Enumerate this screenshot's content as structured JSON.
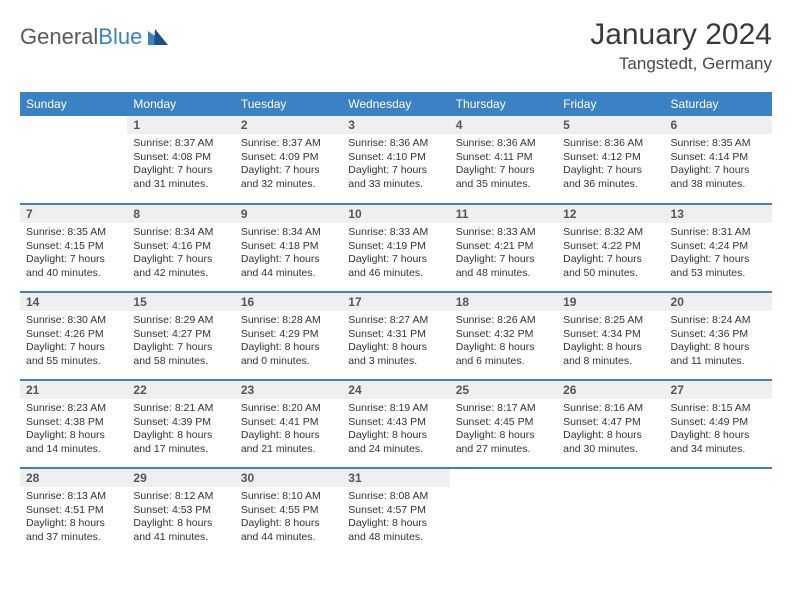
{
  "brand": {
    "name_a": "General",
    "name_b": "Blue"
  },
  "title": "January 2024",
  "location": "Tangstedt, Germany",
  "colors": {
    "header_bg": "#3b82c4",
    "header_text": "#ffffff",
    "daynum_bg": "#efefef",
    "row_border": "#3b82c4",
    "text": "#333333"
  },
  "days_of_week": [
    "Sunday",
    "Monday",
    "Tuesday",
    "Wednesday",
    "Thursday",
    "Friday",
    "Saturday"
  ],
  "grid": [
    [
      {
        "n": "",
        "sr": "",
        "ss": "",
        "dl": ""
      },
      {
        "n": "1",
        "sr": "Sunrise: 8:37 AM",
        "ss": "Sunset: 4:08 PM",
        "dl": "Daylight: 7 hours and 31 minutes."
      },
      {
        "n": "2",
        "sr": "Sunrise: 8:37 AM",
        "ss": "Sunset: 4:09 PM",
        "dl": "Daylight: 7 hours and 32 minutes."
      },
      {
        "n": "3",
        "sr": "Sunrise: 8:36 AM",
        "ss": "Sunset: 4:10 PM",
        "dl": "Daylight: 7 hours and 33 minutes."
      },
      {
        "n": "4",
        "sr": "Sunrise: 8:36 AM",
        "ss": "Sunset: 4:11 PM",
        "dl": "Daylight: 7 hours and 35 minutes."
      },
      {
        "n": "5",
        "sr": "Sunrise: 8:36 AM",
        "ss": "Sunset: 4:12 PM",
        "dl": "Daylight: 7 hours and 36 minutes."
      },
      {
        "n": "6",
        "sr": "Sunrise: 8:35 AM",
        "ss": "Sunset: 4:14 PM",
        "dl": "Daylight: 7 hours and 38 minutes."
      }
    ],
    [
      {
        "n": "7",
        "sr": "Sunrise: 8:35 AM",
        "ss": "Sunset: 4:15 PM",
        "dl": "Daylight: 7 hours and 40 minutes."
      },
      {
        "n": "8",
        "sr": "Sunrise: 8:34 AM",
        "ss": "Sunset: 4:16 PM",
        "dl": "Daylight: 7 hours and 42 minutes."
      },
      {
        "n": "9",
        "sr": "Sunrise: 8:34 AM",
        "ss": "Sunset: 4:18 PM",
        "dl": "Daylight: 7 hours and 44 minutes."
      },
      {
        "n": "10",
        "sr": "Sunrise: 8:33 AM",
        "ss": "Sunset: 4:19 PM",
        "dl": "Daylight: 7 hours and 46 minutes."
      },
      {
        "n": "11",
        "sr": "Sunrise: 8:33 AM",
        "ss": "Sunset: 4:21 PM",
        "dl": "Daylight: 7 hours and 48 minutes."
      },
      {
        "n": "12",
        "sr": "Sunrise: 8:32 AM",
        "ss": "Sunset: 4:22 PM",
        "dl": "Daylight: 7 hours and 50 minutes."
      },
      {
        "n": "13",
        "sr": "Sunrise: 8:31 AM",
        "ss": "Sunset: 4:24 PM",
        "dl": "Daylight: 7 hours and 53 minutes."
      }
    ],
    [
      {
        "n": "14",
        "sr": "Sunrise: 8:30 AM",
        "ss": "Sunset: 4:26 PM",
        "dl": "Daylight: 7 hours and 55 minutes."
      },
      {
        "n": "15",
        "sr": "Sunrise: 8:29 AM",
        "ss": "Sunset: 4:27 PM",
        "dl": "Daylight: 7 hours and 58 minutes."
      },
      {
        "n": "16",
        "sr": "Sunrise: 8:28 AM",
        "ss": "Sunset: 4:29 PM",
        "dl": "Daylight: 8 hours and 0 minutes."
      },
      {
        "n": "17",
        "sr": "Sunrise: 8:27 AM",
        "ss": "Sunset: 4:31 PM",
        "dl": "Daylight: 8 hours and 3 minutes."
      },
      {
        "n": "18",
        "sr": "Sunrise: 8:26 AM",
        "ss": "Sunset: 4:32 PM",
        "dl": "Daylight: 8 hours and 6 minutes."
      },
      {
        "n": "19",
        "sr": "Sunrise: 8:25 AM",
        "ss": "Sunset: 4:34 PM",
        "dl": "Daylight: 8 hours and 8 minutes."
      },
      {
        "n": "20",
        "sr": "Sunrise: 8:24 AM",
        "ss": "Sunset: 4:36 PM",
        "dl": "Daylight: 8 hours and 11 minutes."
      }
    ],
    [
      {
        "n": "21",
        "sr": "Sunrise: 8:23 AM",
        "ss": "Sunset: 4:38 PM",
        "dl": "Daylight: 8 hours and 14 minutes."
      },
      {
        "n": "22",
        "sr": "Sunrise: 8:21 AM",
        "ss": "Sunset: 4:39 PM",
        "dl": "Daylight: 8 hours and 17 minutes."
      },
      {
        "n": "23",
        "sr": "Sunrise: 8:20 AM",
        "ss": "Sunset: 4:41 PM",
        "dl": "Daylight: 8 hours and 21 minutes."
      },
      {
        "n": "24",
        "sr": "Sunrise: 8:19 AM",
        "ss": "Sunset: 4:43 PM",
        "dl": "Daylight: 8 hours and 24 minutes."
      },
      {
        "n": "25",
        "sr": "Sunrise: 8:17 AM",
        "ss": "Sunset: 4:45 PM",
        "dl": "Daylight: 8 hours and 27 minutes."
      },
      {
        "n": "26",
        "sr": "Sunrise: 8:16 AM",
        "ss": "Sunset: 4:47 PM",
        "dl": "Daylight: 8 hours and 30 minutes."
      },
      {
        "n": "27",
        "sr": "Sunrise: 8:15 AM",
        "ss": "Sunset: 4:49 PM",
        "dl": "Daylight: 8 hours and 34 minutes."
      }
    ],
    [
      {
        "n": "28",
        "sr": "Sunrise: 8:13 AM",
        "ss": "Sunset: 4:51 PM",
        "dl": "Daylight: 8 hours and 37 minutes."
      },
      {
        "n": "29",
        "sr": "Sunrise: 8:12 AM",
        "ss": "Sunset: 4:53 PM",
        "dl": "Daylight: 8 hours and 41 minutes."
      },
      {
        "n": "30",
        "sr": "Sunrise: 8:10 AM",
        "ss": "Sunset: 4:55 PM",
        "dl": "Daylight: 8 hours and 44 minutes."
      },
      {
        "n": "31",
        "sr": "Sunrise: 8:08 AM",
        "ss": "Sunset: 4:57 PM",
        "dl": "Daylight: 8 hours and 48 minutes."
      },
      {
        "n": "",
        "sr": "",
        "ss": "",
        "dl": ""
      },
      {
        "n": "",
        "sr": "",
        "ss": "",
        "dl": ""
      },
      {
        "n": "",
        "sr": "",
        "ss": "",
        "dl": ""
      }
    ]
  ]
}
